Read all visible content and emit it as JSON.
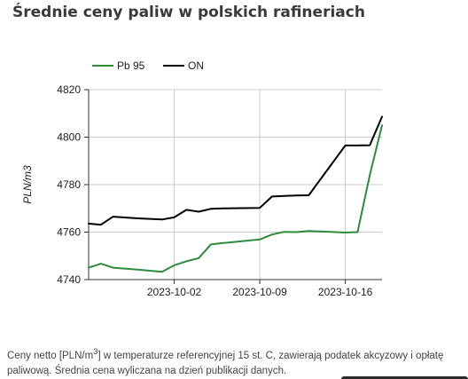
{
  "title": "Średnie ceny paliw w polskich rafineriach",
  "footnote": {
    "prefix": "Ceny netto [PLN/m",
    "sup": "3",
    "suffix": "] w temperaturze referencyjnej 15 st. C, zawierają podatek akcyzowy i opłatę paliwową. Średnia cena wyliczana na dzień publikacji danych."
  },
  "colors": {
    "pb95": "#2e8b3e",
    "on": "#000000",
    "grid": "#cccccc",
    "axis": "#333333"
  },
  "chart_data": {
    "type": "line",
    "title": "Średnie ceny paliw w polskich rafineriach",
    "xlabel": "",
    "ylabel": "PLN/m3",
    "ylim": [
      4740,
      4820
    ],
    "xlim": [
      "2023-09-25",
      "2023-10-19"
    ],
    "grid": true,
    "legend_position": "top-left",
    "yticks": [
      "4740",
      "4760",
      "4780",
      "4800",
      "4820"
    ],
    "xticks": [
      "2023-10-02",
      "2023-10-09",
      "2023-10-16"
    ],
    "x": [
      "2023-09-25",
      "2023-09-26",
      "2023-09-27",
      "2023-09-29",
      "2023-10-01",
      "2023-10-02",
      "2023-10-03",
      "2023-10-04",
      "2023-10-05",
      "2023-10-06",
      "2023-10-09",
      "2023-10-10",
      "2023-10-11",
      "2023-10-12",
      "2023-10-13",
      "2023-10-16",
      "2023-10-17",
      "2023-10-18",
      "2023-10-19"
    ],
    "series": [
      {
        "name": "Pb 95",
        "color": "#2e8b3e",
        "values": [
          4745.0,
          4746.7,
          4745.0,
          4744.2,
          4743.3,
          4746.0,
          4747.7,
          4749.0,
          4754.8,
          4755.4,
          4756.9,
          4759.0,
          4760.1,
          4760.0,
          4760.5,
          4759.8,
          4760.0,
          4784.0,
          4805.0
        ]
      },
      {
        "name": "ON",
        "color": "#000000",
        "values": [
          4763.6,
          4763.1,
          4766.5,
          4765.8,
          4765.3,
          4766.2,
          4769.4,
          4768.6,
          4769.8,
          4770.0,
          4770.2,
          4775.0,
          4775.2,
          4775.4,
          4775.5,
          4796.5,
          4796.5,
          4796.6,
          4808.6
        ]
      }
    ]
  }
}
